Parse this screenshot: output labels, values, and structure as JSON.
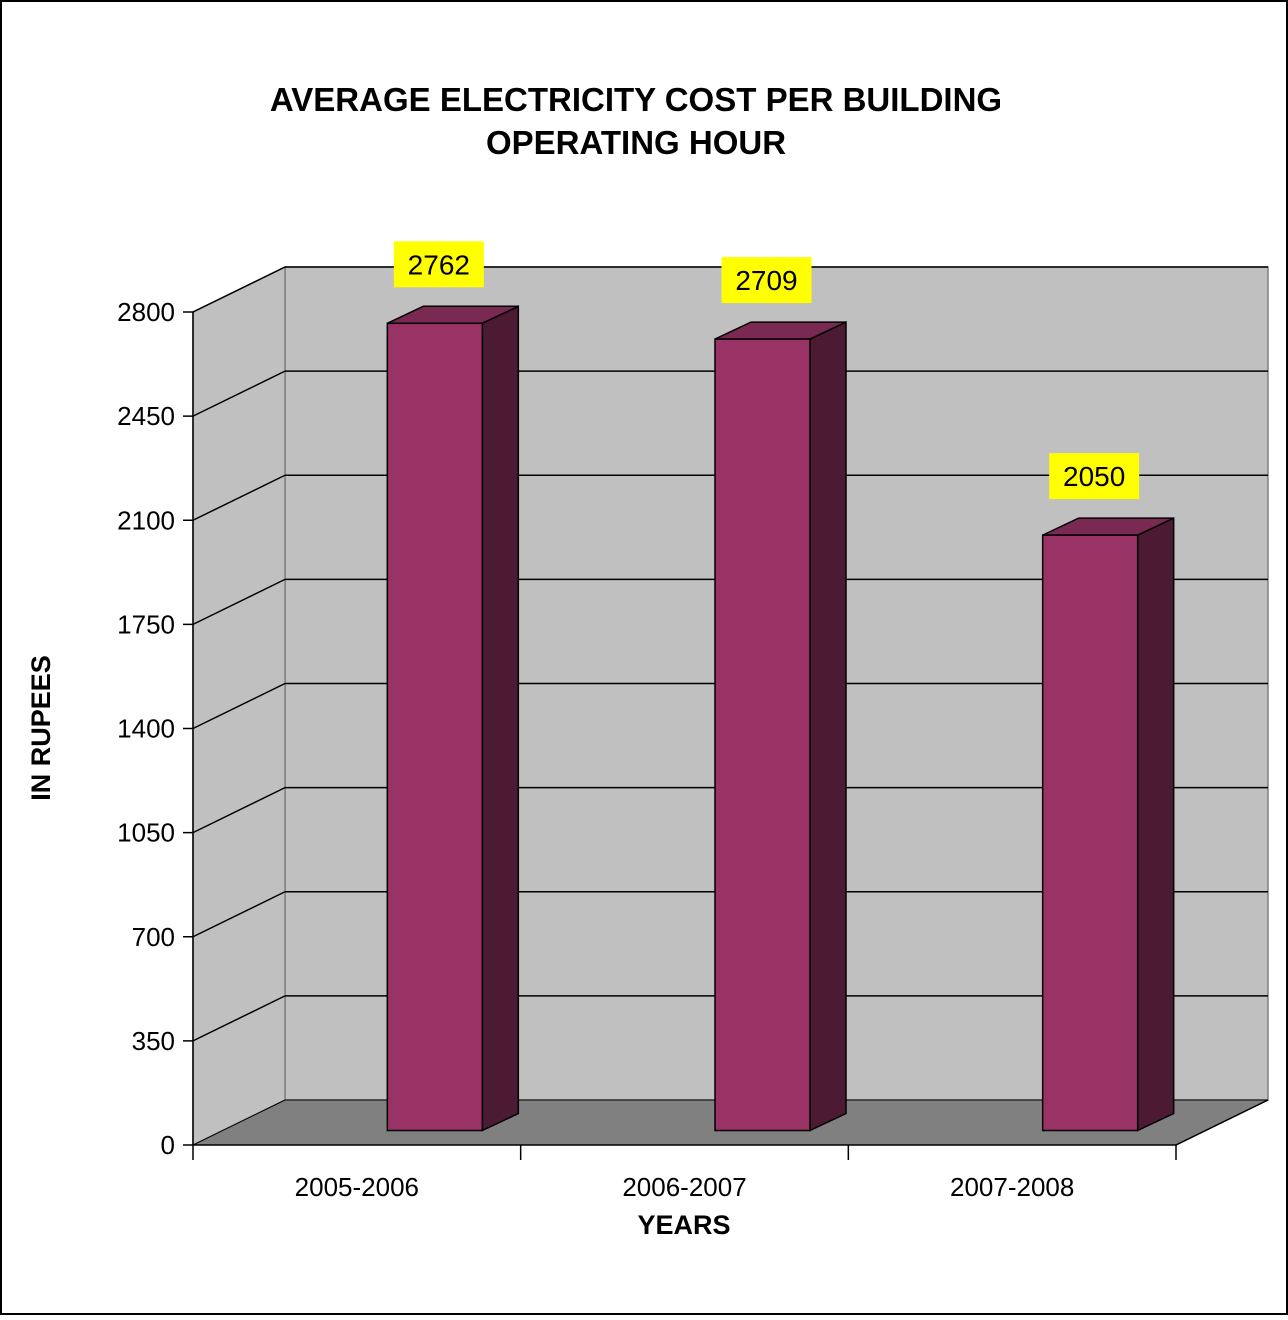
{
  "chart_data": {
    "type": "bar",
    "style": "3d-column",
    "title_line1": "AVERAGE ELECTRICITY COST PER BUILDING",
    "title_line2": "OPERATING HOUR",
    "xlabel": "YEARS",
    "ylabel": "IN RUPEES",
    "categories": [
      "2005-2006",
      "2006-2007",
      "2007-2008"
    ],
    "values": [
      2762,
      2709,
      2050
    ],
    "ylim": [
      0,
      2800
    ],
    "yticks": [
      0,
      350,
      700,
      1050,
      1400,
      1750,
      2100,
      2450,
      2800
    ],
    "grid": true,
    "legend": "none",
    "colors": {
      "bar_front": "#993366",
      "bar_side": "#4d1a33",
      "bar_top": "#7a2952",
      "back_wall": "#c0c0c0",
      "side_wall": "#c0c0c0",
      "floor": "#808080",
      "data_label_bg": "#ffff00",
      "gridline": "#000000"
    }
  }
}
